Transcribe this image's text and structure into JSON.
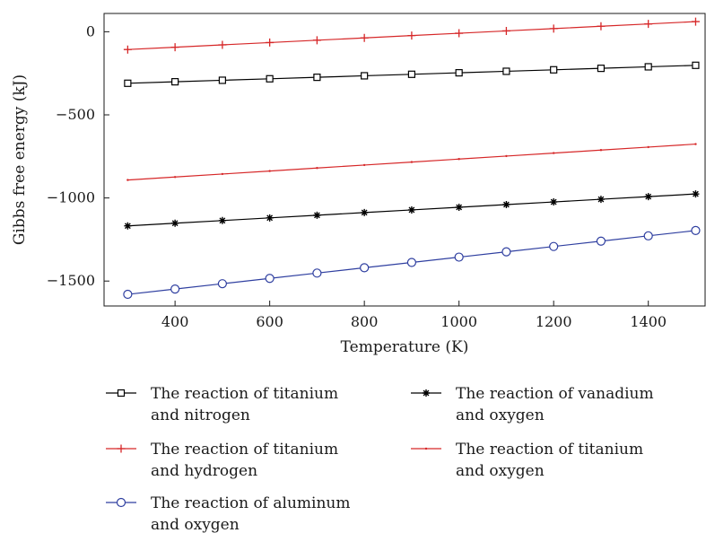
{
  "chart_data": {
    "type": "line",
    "title": "",
    "xlabel": "Temperature (K)",
    "ylabel": "Gibbs free energy (kJ)",
    "xlim": [
      250,
      1520
    ],
    "ylim": [
      -1650,
      110
    ],
    "xticks": [
      400,
      600,
      800,
      1000,
      1200,
      1400
    ],
    "yticks": [
      0,
      -500,
      -1000,
      -1500
    ],
    "grid": false,
    "legend_position": "bottom",
    "x": [
      300,
      400,
      500,
      600,
      700,
      800,
      900,
      1000,
      1100,
      1200,
      1300,
      1400,
      1500
    ],
    "series": [
      {
        "name": "The reaction of titanium and nitrogen",
        "legend_lines": [
          "The reaction of titanium",
          "and nitrogen"
        ],
        "color": "#000000",
        "marker": "square",
        "values": [
          -310,
          -301,
          -292,
          -283,
          -274,
          -265,
          -256,
          -247,
          -238,
          -229,
          -220,
          -211,
          -202
        ]
      },
      {
        "name": "The reaction of titanium and hydrogen",
        "legend_lines": [
          "The reaction of titanium",
          "and hydrogen"
        ],
        "color": "#d62728",
        "marker": "plus",
        "values": [
          -107,
          -93,
          -79,
          -65,
          -51,
          -37,
          -23,
          -9,
          5,
          19,
          33,
          47,
          61
        ]
      },
      {
        "name": "The reaction of aluminum and oxygen",
        "legend_lines": [
          "The reaction of aluminum",
          "and oxygen"
        ],
        "color": "#2f3fa0",
        "marker": "circle",
        "values": [
          -1580,
          -1548,
          -1516,
          -1484,
          -1452,
          -1420,
          -1388,
          -1356,
          -1324,
          -1292,
          -1260,
          -1228,
          -1196
        ]
      },
      {
        "name": "The reaction of vanadium and oxygen",
        "legend_lines": [
          "The reaction of vanadium",
          "and oxygen"
        ],
        "color": "#000000",
        "marker": "star",
        "values": [
          -1168,
          -1152,
          -1136,
          -1120,
          -1104,
          -1088,
          -1072,
          -1056,
          -1040,
          -1024,
          -1008,
          -992,
          -976
        ]
      },
      {
        "name": "The reaction of titanium and oxygen",
        "legend_lines": [
          "The reaction of titanium",
          "and oxygen"
        ],
        "color": "#d62728",
        "marker": "dot",
        "values": [
          -892,
          -874,
          -856,
          -838,
          -820,
          -802,
          -784,
          -766,
          -748,
          -730,
          -712,
          -694,
          -676
        ]
      }
    ]
  }
}
